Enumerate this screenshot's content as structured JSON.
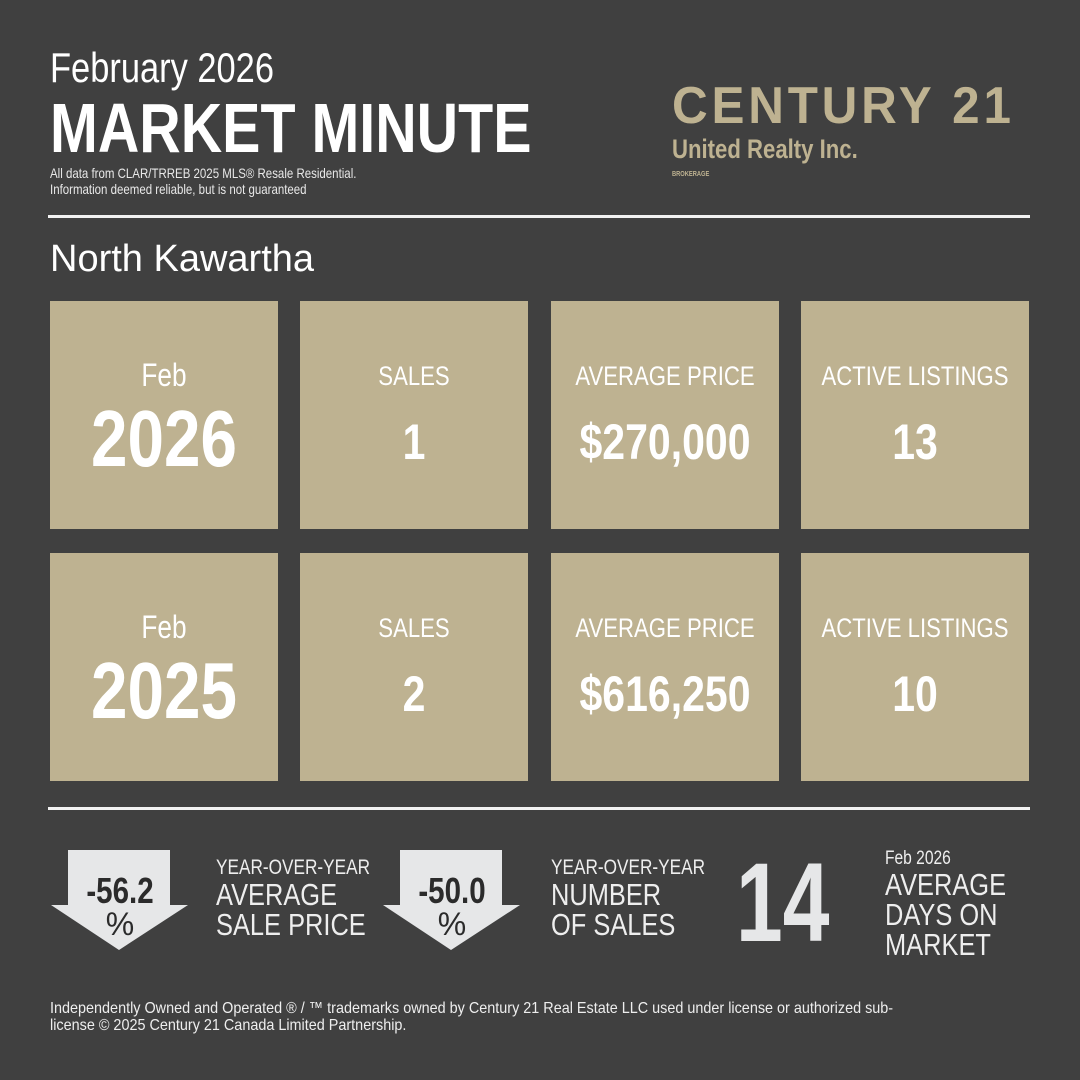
{
  "header": {
    "month_title": "February 2026",
    "title": "MARKET MINUTE",
    "disclaimer_line1": "All data from CLAR/TRREB 2025 MLS® Resale  Residential.",
    "disclaimer_line2": "Information deemed reliable, but is not guaranteed"
  },
  "logo": {
    "brand": "CENTURY 21",
    "office": "United Realty Inc.",
    "tag": "BROKERAGE"
  },
  "area": "North Kawartha",
  "colors": {
    "background": "#404040",
    "card": "#beb291",
    "arrow": "#e6e7e8"
  },
  "rows": [
    {
      "month": "Feb",
      "year": "2026",
      "sales_label": "SALES",
      "sales": "1",
      "price_label": "AVERAGE PRICE",
      "price": "$270,000",
      "listings_label": "ACTIVE LISTINGS",
      "listings": "13"
    },
    {
      "month": "Feb",
      "year": "2025",
      "sales_label": "SALES",
      "sales": "2",
      "price_label": "AVERAGE PRICE",
      "price": "$616,250",
      "listings_label": "ACTIVE LISTINGS",
      "listings": "10"
    }
  ],
  "stats": {
    "price_change": {
      "value": "-56.2",
      "unit": "%",
      "direction": "down",
      "label_small": "YEAR-OVER-YEAR",
      "label_line1": "AVERAGE",
      "label_line2": "SALE PRICE"
    },
    "sales_change": {
      "value": "-50.0",
      "unit": "%",
      "direction": "down",
      "label_small": "YEAR-OVER-YEAR",
      "label_line1": "NUMBER",
      "label_line2": "OF SALES"
    },
    "dom": {
      "value": "14",
      "period": "Feb 2026",
      "label_line1": "AVERAGE",
      "label_line2": "DAYS ON",
      "label_line3": "MARKET"
    }
  },
  "footer": {
    "line1": "Independently Owned and Operated ® / ™ trademarks owned by Century 21 Real Estate LLC used under license or authorized sub-",
    "line2": "license © 2025 Century 21 Canada Limited Partnership."
  }
}
